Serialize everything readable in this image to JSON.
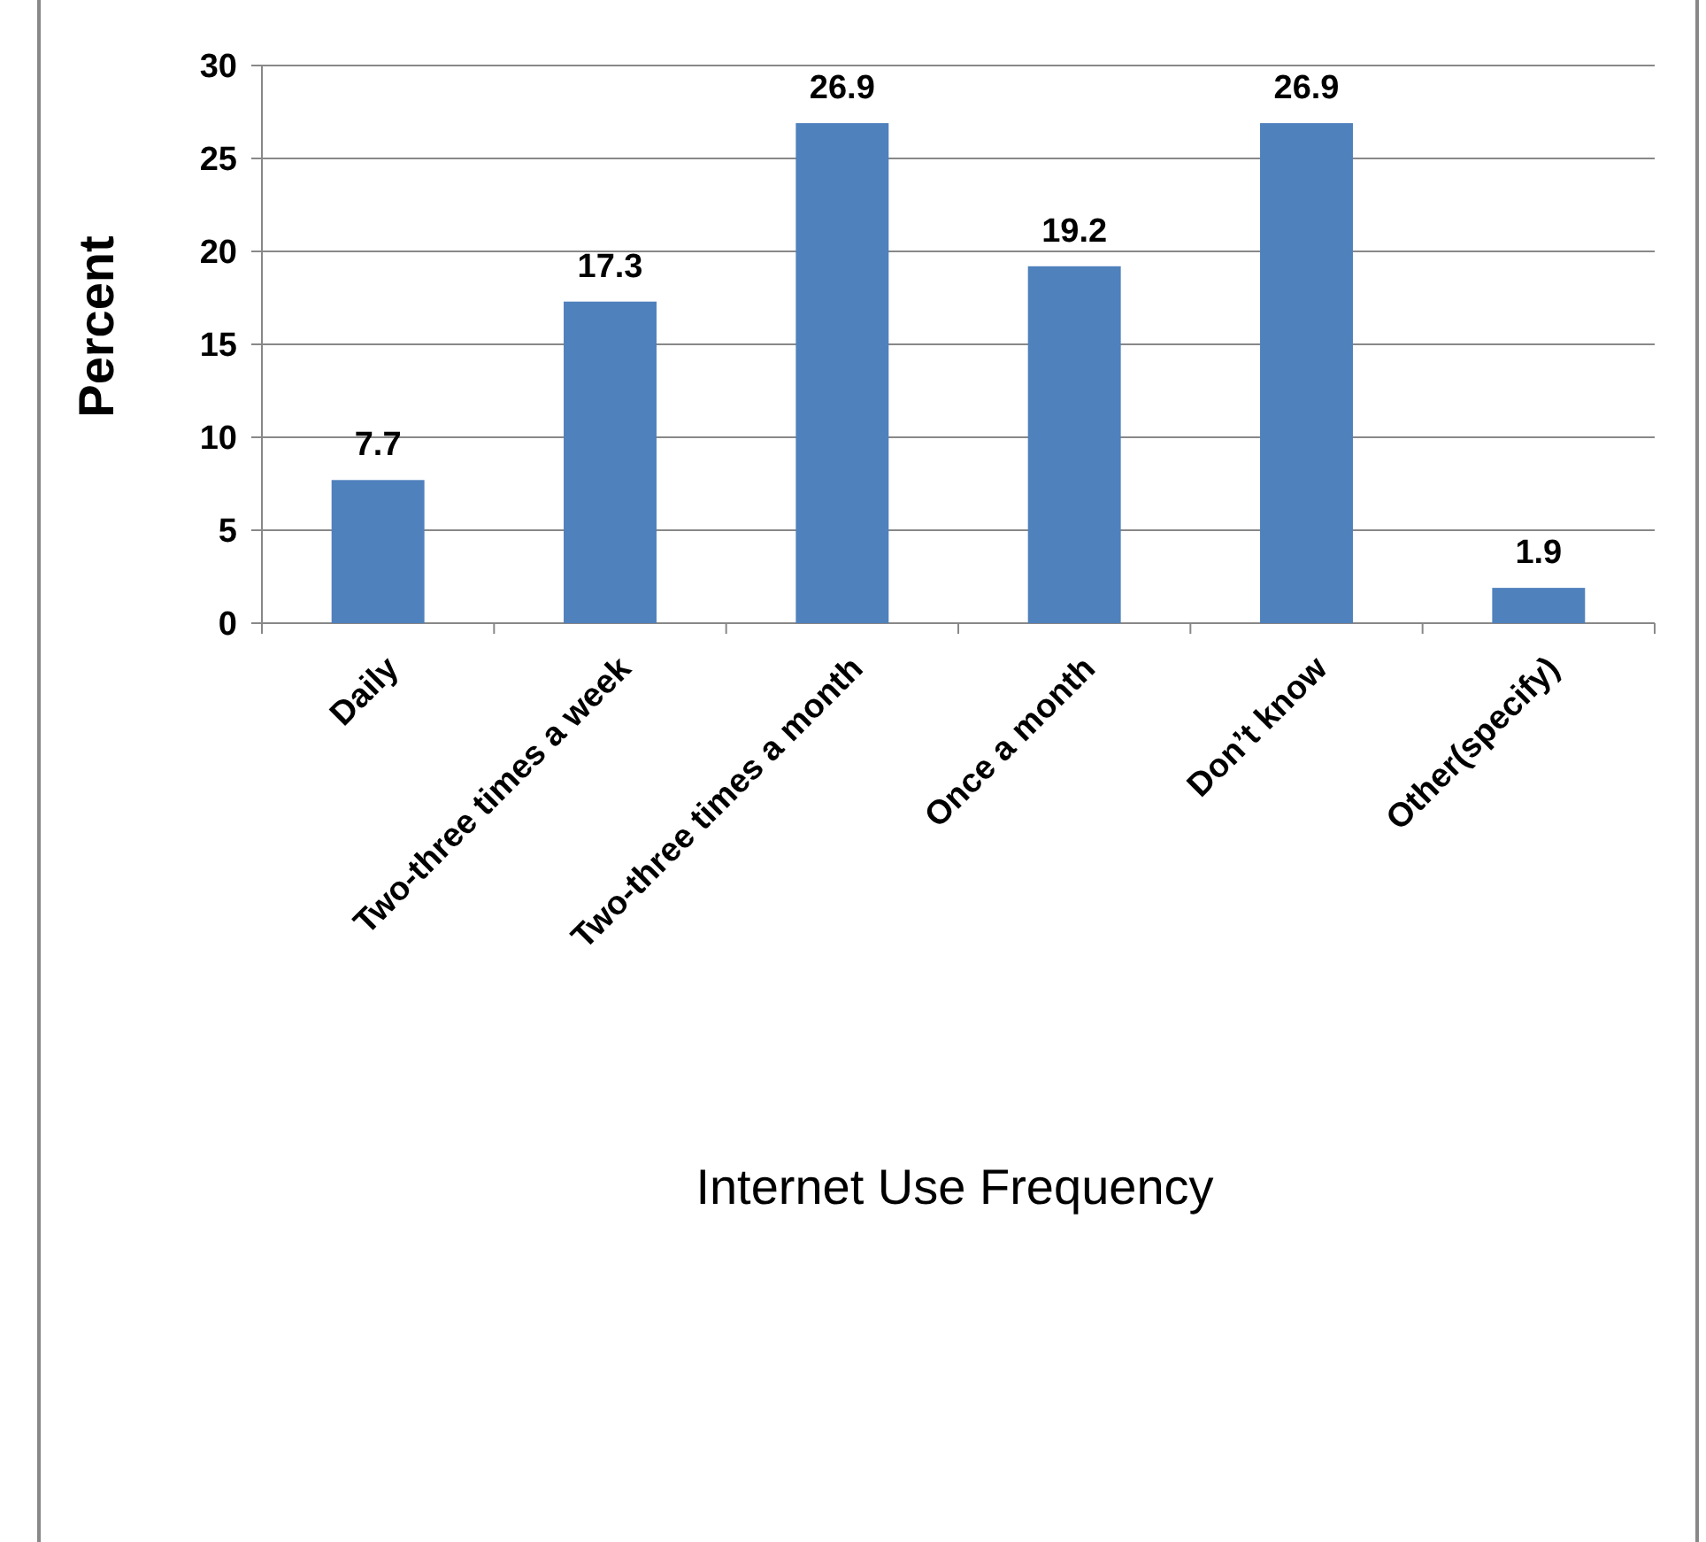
{
  "chart_data": {
    "type": "bar",
    "xlabel": "Internet Use Frequency",
    "ylabel": "Percent",
    "categories": [
      "Daily",
      "Two-three times a week",
      "Two-three times a month",
      "Once a month",
      "Don’t know",
      "Other(specify)"
    ],
    "values": [
      7.7,
      17.3,
      26.9,
      19.2,
      26.9,
      1.9
    ],
    "color": "#4f81bd",
    "ylim": [
      0,
      30
    ],
    "yticks": [
      0,
      5,
      10,
      15,
      20,
      25,
      30
    ],
    "grid": "y",
    "data_labels": true
  }
}
